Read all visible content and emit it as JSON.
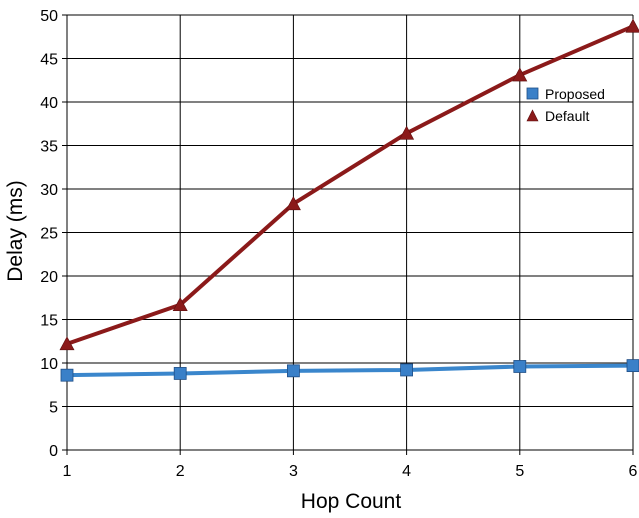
{
  "chart_data": {
    "type": "line",
    "title": "",
    "xlabel": "Hop Count",
    "ylabel": "Delay (ms)",
    "x": [
      1,
      2,
      3,
      4,
      5,
      6
    ],
    "xlim": [
      1,
      6
    ],
    "ylim": [
      0,
      50
    ],
    "xticks": [
      1,
      2,
      3,
      4,
      5,
      6
    ],
    "yticks": [
      0,
      5,
      10,
      15,
      20,
      25,
      30,
      35,
      40,
      45,
      50
    ],
    "grid": true,
    "legend_position": "top-right",
    "series": [
      {
        "name": "Proposed",
        "values": [
          8.6,
          8.8,
          9.1,
          9.2,
          9.6,
          9.7
        ],
        "color": "#3a86cc",
        "marker": "square",
        "marker_color": "#3a80c8"
      },
      {
        "name": "Default",
        "values": [
          12.2,
          16.7,
          28.3,
          36.4,
          43.1,
          48.7
        ],
        "color": "#8b1a1a",
        "marker": "triangle",
        "marker_color": "#8b1a1a"
      }
    ]
  }
}
